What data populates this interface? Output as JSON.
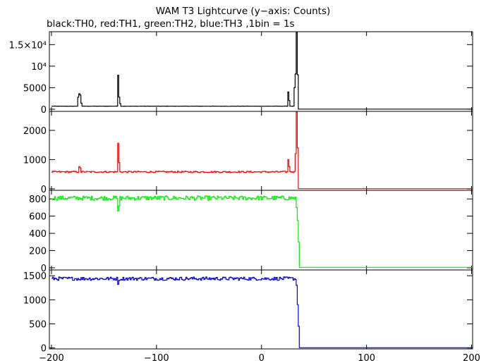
{
  "title": "WAM T3 Lightcurve (y−axis: Counts)",
  "subtitle": "black:TH0, red:TH1, green:TH2, blue:TH3 ,1bin = 1s",
  "chart_data": [
    {
      "type": "line",
      "name": "TH0",
      "color": "#000000",
      "xlim": [
        -202,
        201
      ],
      "ylim": [
        -500,
        18000
      ],
      "yticks": [
        0,
        5000,
        10000,
        15000
      ],
      "yticklabels": [
        "0",
        "5000",
        "10⁴",
        "1.5×10⁴"
      ],
      "baseline": 700,
      "noise": 25,
      "post_level": 20,
      "drop_at": 34,
      "features": [
        {
          "x": -175,
          "y": 2800
        },
        {
          "x": -174,
          "y": 3600
        },
        {
          "x": -173,
          "y": 3300
        },
        {
          "x": -172,
          "y": 1400
        },
        {
          "x": -137,
          "y": 7900
        },
        {
          "x": -136,
          "y": 2800
        },
        {
          "x": -135,
          "y": 1300
        },
        {
          "x": 25,
          "y": 4000
        },
        {
          "x": 26,
          "y": 2000
        },
        {
          "x": 31,
          "y": 5000
        },
        {
          "x": 32,
          "y": 8200
        },
        {
          "x": 33,
          "y": 17800
        },
        {
          "x": 34,
          "y": 8000
        }
      ]
    },
    {
      "type": "line",
      "name": "TH1",
      "color": "#ff0000",
      "xlim": [
        -202,
        201
      ],
      "ylim": [
        -50,
        2650
      ],
      "yticks": [
        0,
        1000,
        2000
      ],
      "yticklabels": [
        "0",
        "1000",
        "2000"
      ],
      "baseline": 580,
      "noise": 25,
      "post_level": 5,
      "drop_at": 35,
      "features": [
        {
          "x": -174,
          "y": 760
        },
        {
          "x": -173,
          "y": 720
        },
        {
          "x": -137,
          "y": 1560
        },
        {
          "x": -136,
          "y": 900
        },
        {
          "x": 25,
          "y": 1000
        },
        {
          "x": 26,
          "y": 760
        },
        {
          "x": 32,
          "y": 1200
        },
        {
          "x": 33,
          "y": 2620
        },
        {
          "x": 34,
          "y": 1400
        }
      ]
    },
    {
      "type": "line",
      "name": "TH2",
      "color": "#00ee00",
      "xlim": [
        -202,
        201
      ],
      "ylim": [
        -25,
        900
      ],
      "yticks": [
        0,
        200,
        400,
        600,
        800
      ],
      "yticklabels": [
        "0",
        "200",
        "400",
        "600",
        "800"
      ],
      "baseline": 810,
      "noise": 25,
      "post_level": 5,
      "drop_at": 36,
      "features": [
        {
          "x": -137,
          "y": 660
        },
        {
          "x": -136,
          "y": 720
        },
        {
          "x": 33,
          "y": 700
        },
        {
          "x": 34,
          "y": 550
        },
        {
          "x": 35,
          "y": 300
        }
      ]
    },
    {
      "type": "line",
      "name": "TH3",
      "color": "#0000dd",
      "xlim": [
        -202,
        201
      ],
      "ylim": [
        -20,
        1620
      ],
      "yticks": [
        0,
        500,
        1000,
        1500
      ],
      "yticklabels": [
        "0",
        "500",
        "1000",
        "1500"
      ],
      "baseline": 1440,
      "noise": 35,
      "post_level": 5,
      "drop_at": 36,
      "features": [
        {
          "x": -137,
          "y": 1320
        },
        {
          "x": -136,
          "y": 1400
        },
        {
          "x": 33,
          "y": 1300
        },
        {
          "x": 34,
          "y": 900
        },
        {
          "x": 35,
          "y": 450
        }
      ]
    }
  ],
  "xaxis": {
    "xlim": [
      -202,
      201
    ],
    "ticks": [
      -200,
      -100,
      0,
      100,
      200
    ],
    "ticklabels": [
      "−200",
      "−100",
      "0",
      "100",
      "200"
    ]
  }
}
